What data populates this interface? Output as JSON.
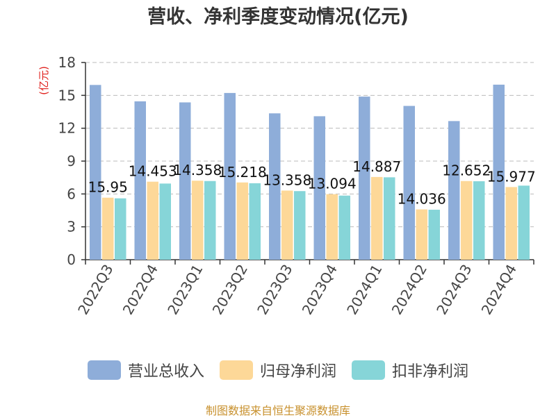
{
  "chart_data": {
    "type": "bar",
    "title": "营收、净利季度变动情况(亿元)",
    "ylabel": "(亿元)",
    "ylim": [
      0,
      18
    ],
    "yticks": [
      0,
      3,
      6,
      9,
      12,
      15,
      18
    ],
    "grid": true,
    "legend_position": "bottom",
    "categories": [
      "2022Q3",
      "2022Q4",
      "2023Q1",
      "2023Q2",
      "2023Q3",
      "2023Q4",
      "2024Q1",
      "2024Q2",
      "2024Q3",
      "2024Q4"
    ],
    "series": [
      {
        "name": "营业总收入",
        "color": "#8eadd9",
        "values": [
          15.95,
          14.453,
          14.358,
          15.218,
          13.358,
          13.094,
          14.887,
          14.036,
          12.652,
          15.977
        ]
      },
      {
        "name": "归母净利润",
        "color": "#fdd898",
        "values": [
          5.66,
          7.12,
          7.21,
          7.05,
          6.31,
          5.98,
          7.55,
          4.59,
          7.18,
          6.63
        ]
      },
      {
        "name": "扣非净利润",
        "color": "#86d5d8",
        "values": [
          5.6,
          6.95,
          7.18,
          6.98,
          6.26,
          5.85,
          7.52,
          4.56,
          7.16,
          6.76
        ]
      }
    ],
    "data_labels": [
      "15.95",
      "14.453",
      "14.358",
      "15.218",
      "13.358",
      "13.094",
      "14.887",
      "14.036",
      "12.652",
      "15.977"
    ]
  },
  "footer": "制图数据来自恒生聚源数据库"
}
